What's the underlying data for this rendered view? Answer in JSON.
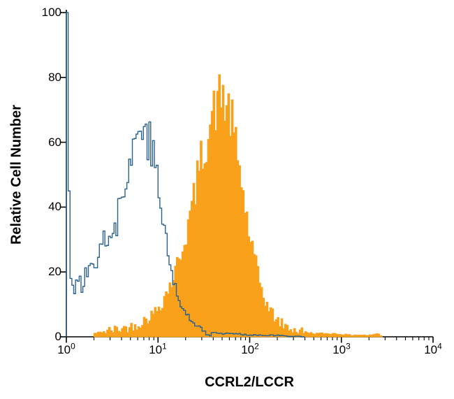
{
  "figure": {
    "background": "#ffffff"
  },
  "chart_data": {
    "type": "area",
    "subtype": "flow-cytometry-overlay-histogram",
    "title": "",
    "xlabel": "CCRL2/LCCR",
    "ylabel": "Relative Cell Number",
    "x_scale": "log10",
    "xlim_log10": [
      0,
      4
    ],
    "ylim": [
      0,
      100
    ],
    "grid": false,
    "legend": "none",
    "axis_color": "#000000",
    "y_ticks": [
      0,
      20,
      40,
      60,
      80,
      100
    ],
    "x_ticks": [
      {
        "base": "10",
        "exp": "0"
      },
      {
        "base": "10",
        "exp": "1"
      },
      {
        "base": "10",
        "exp": "2"
      },
      {
        "base": "10",
        "exp": "3"
      },
      {
        "base": "10",
        "exp": "4"
      }
    ],
    "series": [
      {
        "name": "filled_histogram",
        "style": "filled",
        "color": "#F9A11B",
        "x_log10": [
          0.3,
          0.4,
          0.5,
          0.6,
          0.7,
          0.8,
          0.85,
          0.9,
          0.95,
          1.0,
          1.05,
          1.1,
          1.15,
          1.2,
          1.25,
          1.3,
          1.35,
          1.4,
          1.45,
          1.5,
          1.55,
          1.58,
          1.62,
          1.65,
          1.68,
          1.7,
          1.73,
          1.75,
          1.78,
          1.8,
          1.83,
          1.86,
          1.9,
          1.93,
          1.96,
          2.0,
          2.05,
          2.1,
          2.15,
          2.2,
          2.25,
          2.3,
          2.35,
          2.4,
          2.45,
          2.5,
          2.6,
          2.7,
          2.8,
          2.9,
          3.0,
          3.1,
          3.2,
          3.3,
          3.4,
          3.45
        ],
        "y": [
          1,
          1.5,
          2,
          2.5,
          3,
          4,
          5,
          6,
          7,
          9,
          11,
          14,
          17,
          21,
          26,
          31,
          37,
          44,
          52,
          58,
          63,
          67,
          70,
          72,
          74,
          75,
          72,
          71,
          69,
          67,
          62,
          57,
          50,
          44,
          38,
          31,
          24,
          18,
          13,
          9,
          7,
          5,
          4,
          3,
          2.5,
          2,
          1.5,
          1,
          1,
          1,
          0.8,
          0.5,
          0.6,
          0.4,
          1,
          0
        ]
      },
      {
        "name": "open_histogram",
        "style": "outline",
        "color": "#2B618E",
        "x_log10": [
          0.0,
          0.015,
          0.03,
          0.05,
          0.08,
          0.1,
          0.13,
          0.15,
          0.18,
          0.2,
          0.23,
          0.25,
          0.28,
          0.3,
          0.33,
          0.35,
          0.38,
          0.4,
          0.43,
          0.45,
          0.48,
          0.5,
          0.53,
          0.55,
          0.58,
          0.6,
          0.63,
          0.65,
          0.68,
          0.7,
          0.73,
          0.75,
          0.78,
          0.8,
          0.83,
          0.85,
          0.88,
          0.9,
          0.93,
          0.95,
          0.98,
          1.0,
          1.03,
          1.05,
          1.08,
          1.1,
          1.13,
          1.15,
          1.18,
          1.2,
          1.25,
          1.3,
          1.35,
          1.4,
          1.45,
          1.5,
          1.6,
          1.7,
          1.8,
          1.9,
          2.0,
          2.2,
          2.4,
          2.6
        ],
        "y": [
          100,
          100,
          45,
          18,
          15,
          16,
          15,
          17,
          16,
          19,
          18,
          22,
          21,
          25,
          24,
          28,
          30,
          27,
          32,
          30,
          35,
          33,
          38,
          36,
          41,
          44,
          42,
          48,
          52,
          55,
          58,
          62,
          60,
          64,
          67,
          68,
          63,
          61,
          58,
          55,
          51,
          47,
          41,
          37,
          31,
          27,
          23,
          20,
          16,
          14,
          10,
          7,
          5,
          4,
          3,
          2,
          1.5,
          1,
          1,
          0.8,
          0.6,
          0.5,
          0.3,
          0
        ]
      }
    ]
  }
}
